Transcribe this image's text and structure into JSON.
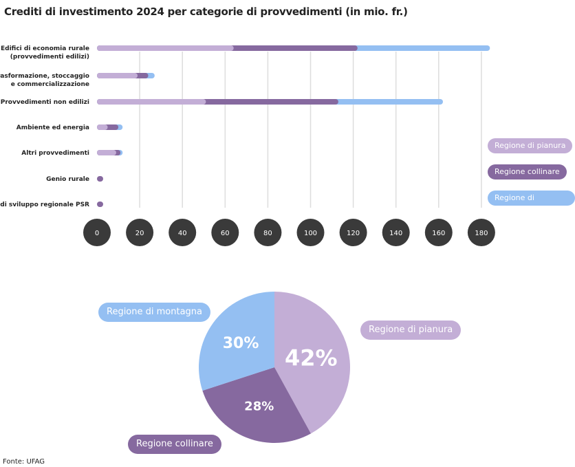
{
  "chart_data": [
    {
      "type": "bar",
      "orientation": "horizontal",
      "stacked": true,
      "title": "Crediti di investimento 2024 per categorie di provvedimenti (in mio. fr.)",
      "categories": [
        "Edifici di economia rurale\n(provvedimenti edilizi)",
        "Trasformazione, stoccaggio\ne commercializzazione",
        "Provvedimenti non edilizi",
        "Ambiente ed energia",
        "Altri provvedimenti",
        "Genio rurale",
        "Progetti di sviluppo regionale PSR"
      ],
      "series": [
        {
          "name": "Regione di pianura",
          "color": "#c3aed6",
          "values": [
            64,
            19,
            51,
            5,
            9,
            0,
            0
          ]
        },
        {
          "name": "Regione collinare",
          "color": "#86699f",
          "values": [
            58,
            5,
            62,
            5,
            2,
            2,
            2
          ]
        },
        {
          "name": "Regione di montagna",
          "color": "#94bff2",
          "values": [
            62,
            3,
            49,
            2,
            1,
            0,
            0
          ]
        }
      ],
      "xlim": [
        0,
        180
      ],
      "xticks": [
        0,
        20,
        40,
        60,
        80,
        100,
        120,
        140,
        160,
        180
      ],
      "grid": true,
      "legend": "right"
    },
    {
      "type": "pie",
      "slices": [
        {
          "name": "Regione di pianura",
          "value": 42,
          "label": "42%",
          "color": "#c3aed6"
        },
        {
          "name": "Regione collinare",
          "value": 28,
          "label": "28%",
          "color": "#86699f"
        },
        {
          "name": "Regione di montagna",
          "value": 30,
          "label": "30%",
          "color": "#94bff2"
        }
      ]
    }
  ],
  "source": "Fonte: UFAG"
}
